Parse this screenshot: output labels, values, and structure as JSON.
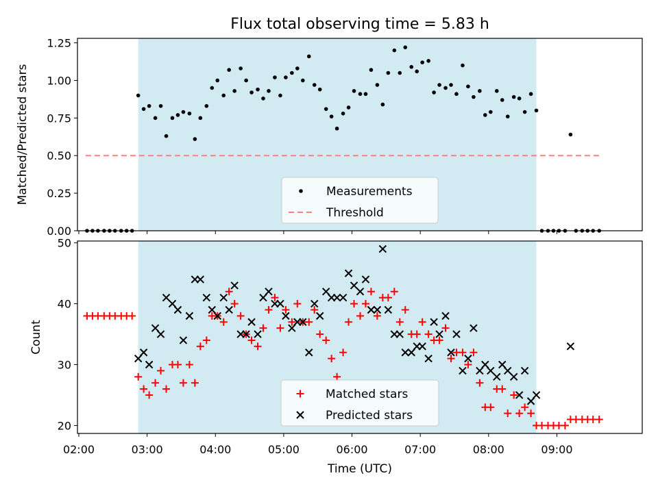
{
  "figure": {
    "title": "Flux total observing time = 5.83 h"
  },
  "shade_color": "#add8e6",
  "chart_data": [
    {
      "type": "scatter",
      "ylabel": "Matched/Predicted stars",
      "xlabel": "",
      "xlim": [
        1.98,
        10.25
      ],
      "ylim": [
        0,
        1.28
      ],
      "yticks": [
        0.0,
        0.25,
        0.5,
        0.75,
        1.0,
        1.25
      ],
      "ytick_labels": [
        "0.00",
        "0.25",
        "0.50",
        "0.75",
        "1.00",
        "1.25"
      ],
      "shaded_interval": [
        2.87,
        8.7
      ],
      "threshold": {
        "name": "Threshold",
        "value": 0.5,
        "x": [
          2.1,
          9.63
        ],
        "color": "#ff7f7f"
      },
      "legend": {
        "position": "lower center",
        "entries": [
          "Measurements",
          "Threshold"
        ]
      },
      "series": [
        {
          "name": "Measurements",
          "marker": "dot",
          "color": "#000000",
          "points": [
            [
              2.12,
              0
            ],
            [
              2.2,
              0
            ],
            [
              2.28,
              0
            ],
            [
              2.37,
              0
            ],
            [
              2.45,
              0
            ],
            [
              2.53,
              0
            ],
            [
              2.62,
              0
            ],
            [
              2.7,
              0
            ],
            [
              2.78,
              0
            ],
            [
              2.87,
              0.9
            ],
            [
              2.95,
              0.81
            ],
            [
              3.03,
              0.83
            ],
            [
              3.12,
              0.75
            ],
            [
              3.2,
              0.83
            ],
            [
              3.28,
              0.63
            ],
            [
              3.37,
              0.75
            ],
            [
              3.45,
              0.77
            ],
            [
              3.53,
              0.79
            ],
            [
              3.62,
              0.78
            ],
            [
              3.7,
              0.61
            ],
            [
              3.78,
              0.75
            ],
            [
              3.87,
              0.83
            ],
            [
              3.95,
              0.95
            ],
            [
              4.03,
              1.0
            ],
            [
              4.12,
              0.9
            ],
            [
              4.2,
              1.07
            ],
            [
              4.28,
              0.93
            ],
            [
              4.37,
              1.08
            ],
            [
              4.45,
              1.0
            ],
            [
              4.53,
              0.92
            ],
            [
              4.62,
              0.94
            ],
            [
              4.7,
              0.88
            ],
            [
              4.78,
              0.93
            ],
            [
              4.87,
              1.02
            ],
            [
              4.95,
              0.9
            ],
            [
              5.03,
              1.02
            ],
            [
              5.12,
              1.05
            ],
            [
              5.2,
              1.08
            ],
            [
              5.28,
              1.0
            ],
            [
              5.37,
              1.16
            ],
            [
              5.45,
              0.97
            ],
            [
              5.53,
              0.94
            ],
            [
              5.62,
              0.81
            ],
            [
              5.7,
              0.76
            ],
            [
              5.78,
              0.68
            ],
            [
              5.87,
              0.78
            ],
            [
              5.95,
              0.82
            ],
            [
              6.03,
              0.93
            ],
            [
              6.12,
              0.91
            ],
            [
              6.2,
              0.91
            ],
            [
              6.28,
              1.07
            ],
            [
              6.37,
              0.97
            ],
            [
              6.45,
              0.84
            ],
            [
              6.53,
              1.05
            ],
            [
              6.62,
              1.2
            ],
            [
              6.7,
              1.05
            ],
            [
              6.78,
              1.22
            ],
            [
              6.87,
              1.09
            ],
            [
              6.95,
              1.06
            ],
            [
              7.03,
              1.12
            ],
            [
              7.12,
              1.13
            ],
            [
              7.2,
              0.92
            ],
            [
              7.28,
              0.97
            ],
            [
              7.37,
              0.95
            ],
            [
              7.45,
              0.97
            ],
            [
              7.53,
              0.91
            ],
            [
              7.62,
              1.1
            ],
            [
              7.7,
              0.96
            ],
            [
              7.78,
              0.89
            ],
            [
              7.87,
              0.93
            ],
            [
              7.95,
              0.77
            ],
            [
              8.03,
              0.79
            ],
            [
              8.12,
              0.93
            ],
            [
              8.2,
              0.87
            ],
            [
              8.28,
              0.76
            ],
            [
              8.37,
              0.89
            ],
            [
              8.45,
              0.88
            ],
            [
              8.53,
              0.79
            ],
            [
              8.62,
              0.91
            ],
            [
              8.7,
              0.8
            ],
            [
              8.78,
              0
            ],
            [
              8.87,
              0
            ],
            [
              8.95,
              0
            ],
            [
              9.03,
              0
            ],
            [
              9.12,
              0
            ],
            [
              9.2,
              0.64
            ],
            [
              9.28,
              0
            ],
            [
              9.37,
              0
            ],
            [
              9.45,
              0
            ],
            [
              9.53,
              0
            ],
            [
              9.62,
              0
            ]
          ]
        }
      ]
    },
    {
      "type": "scatter",
      "ylabel": "Count",
      "xlabel": "Time (UTC)",
      "xlim": [
        1.98,
        10.25
      ],
      "ylim": [
        18.7,
        50.3
      ],
      "yticks": [
        20,
        30,
        40,
        50
      ],
      "ytick_labels": [
        "20",
        "30",
        "40",
        "50"
      ],
      "xticks": [
        2,
        3,
        4,
        5,
        6,
        7,
        8,
        9
      ],
      "xtick_labels": [
        "02:00",
        "03:00",
        "04:00",
        "05:00",
        "06:00",
        "07:00",
        "08:00",
        "09:00"
      ],
      "shaded_interval": [
        2.87,
        8.7
      ],
      "legend": {
        "position": "lower center",
        "entries": [
          "Matched stars",
          "Predicted stars"
        ]
      },
      "series": [
        {
          "name": "Matched stars",
          "marker": "plus",
          "color": "#ff0000",
          "points": [
            [
              2.12,
              38
            ],
            [
              2.2,
              38
            ],
            [
              2.28,
              38
            ],
            [
              2.37,
              38
            ],
            [
              2.45,
              38
            ],
            [
              2.53,
              38
            ],
            [
              2.62,
              38
            ],
            [
              2.7,
              38
            ],
            [
              2.78,
              38
            ],
            [
              2.87,
              28
            ],
            [
              2.95,
              26
            ],
            [
              3.03,
              25
            ],
            [
              3.12,
              27
            ],
            [
              3.2,
              29
            ],
            [
              3.28,
              26
            ],
            [
              3.37,
              30
            ],
            [
              3.45,
              30
            ],
            [
              3.53,
              27
            ],
            [
              3.62,
              30
            ],
            [
              3.7,
              27
            ],
            [
              3.78,
              33
            ],
            [
              3.87,
              34
            ],
            [
              3.95,
              38
            ],
            [
              4.03,
              38
            ],
            [
              4.12,
              37
            ],
            [
              4.2,
              42
            ],
            [
              4.28,
              40
            ],
            [
              4.37,
              38
            ],
            [
              4.45,
              35
            ],
            [
              4.53,
              34
            ],
            [
              4.62,
              33
            ],
            [
              4.7,
              36
            ],
            [
              4.78,
              39
            ],
            [
              4.87,
              41
            ],
            [
              4.95,
              36
            ],
            [
              5.03,
              39
            ],
            [
              5.12,
              37
            ],
            [
              5.2,
              40
            ],
            [
              5.28,
              37
            ],
            [
              5.37,
              37
            ],
            [
              5.45,
              39
            ],
            [
              5.53,
              35
            ],
            [
              5.62,
              34
            ],
            [
              5.7,
              31
            ],
            [
              5.78,
              28
            ],
            [
              5.87,
              32
            ],
            [
              5.95,
              37
            ],
            [
              6.03,
              40
            ],
            [
              6.12,
              38
            ],
            [
              6.2,
              40
            ],
            [
              6.28,
              42
            ],
            [
              6.37,
              38
            ],
            [
              6.45,
              41
            ],
            [
              6.53,
              41
            ],
            [
              6.62,
              42
            ],
            [
              6.7,
              37
            ],
            [
              6.78,
              39
            ],
            [
              6.87,
              35
            ],
            [
              6.95,
              35
            ],
            [
              7.03,
              37
            ],
            [
              7.12,
              35
            ],
            [
              7.2,
              34
            ],
            [
              7.28,
              34
            ],
            [
              7.37,
              36
            ],
            [
              7.45,
              31
            ],
            [
              7.53,
              32
            ],
            [
              7.62,
              32
            ],
            [
              7.7,
              30
            ],
            [
              7.78,
              32
            ],
            [
              7.87,
              27
            ],
            [
              7.95,
              23
            ],
            [
              8.03,
              23
            ],
            [
              8.12,
              26
            ],
            [
              8.2,
              26
            ],
            [
              8.28,
              22
            ],
            [
              8.37,
              25
            ],
            [
              8.45,
              22
            ],
            [
              8.53,
              23
            ],
            [
              8.62,
              22
            ],
            [
              8.7,
              20
            ],
            [
              8.78,
              20
            ],
            [
              8.87,
              20
            ],
            [
              8.95,
              20
            ],
            [
              9.03,
              20
            ],
            [
              9.12,
              20
            ],
            [
              9.2,
              21
            ],
            [
              9.28,
              21
            ],
            [
              9.37,
              21
            ],
            [
              9.45,
              21
            ],
            [
              9.53,
              21
            ],
            [
              9.62,
              21
            ]
          ]
        },
        {
          "name": "Predicted stars",
          "marker": "x",
          "color": "#000000",
          "points": [
            [
              2.87,
              31
            ],
            [
              2.95,
              32
            ],
            [
              3.03,
              30
            ],
            [
              3.12,
              36
            ],
            [
              3.2,
              35
            ],
            [
              3.28,
              41
            ],
            [
              3.37,
              40
            ],
            [
              3.45,
              39
            ],
            [
              3.53,
              34
            ],
            [
              3.62,
              38
            ],
            [
              3.7,
              44
            ],
            [
              3.78,
              44
            ],
            [
              3.87,
              41
            ],
            [
              3.95,
              39
            ],
            [
              4.03,
              38
            ],
            [
              4.12,
              41
            ],
            [
              4.2,
              39
            ],
            [
              4.28,
              43
            ],
            [
              4.37,
              35
            ],
            [
              4.45,
              35
            ],
            [
              4.53,
              37
            ],
            [
              4.62,
              35
            ],
            [
              4.7,
              41
            ],
            [
              4.78,
              42
            ],
            [
              4.87,
              40
            ],
            [
              4.95,
              40
            ],
            [
              5.03,
              38
            ],
            [
              5.12,
              36
            ],
            [
              5.2,
              37
            ],
            [
              5.28,
              37
            ],
            [
              5.37,
              32
            ],
            [
              5.45,
              40
            ],
            [
              5.53,
              38
            ],
            [
              5.62,
              42
            ],
            [
              5.7,
              41
            ],
            [
              5.78,
              41
            ],
            [
              5.87,
              41
            ],
            [
              5.95,
              45
            ],
            [
              6.03,
              43
            ],
            [
              6.12,
              42
            ],
            [
              6.2,
              44
            ],
            [
              6.28,
              39
            ],
            [
              6.37,
              39
            ],
            [
              6.45,
              49
            ],
            [
              6.53,
              39
            ],
            [
              6.62,
              35
            ],
            [
              6.7,
              35
            ],
            [
              6.78,
              32
            ],
            [
              6.87,
              32
            ],
            [
              6.95,
              33
            ],
            [
              7.03,
              33
            ],
            [
              7.12,
              31
            ],
            [
              7.2,
              37
            ],
            [
              7.28,
              35
            ],
            [
              7.37,
              38
            ],
            [
              7.45,
              32
            ],
            [
              7.53,
              35
            ],
            [
              7.62,
              29
            ],
            [
              7.7,
              31
            ],
            [
              7.78,
              36
            ],
            [
              7.87,
              29
            ],
            [
              7.95,
              30
            ],
            [
              8.03,
              29
            ],
            [
              8.12,
              28
            ],
            [
              8.2,
              30
            ],
            [
              8.28,
              29
            ],
            [
              8.37,
              28
            ],
            [
              8.45,
              25
            ],
            [
              8.53,
              29
            ],
            [
              8.62,
              24
            ],
            [
              8.7,
              25
            ],
            [
              9.2,
              33
            ]
          ]
        }
      ]
    }
  ]
}
